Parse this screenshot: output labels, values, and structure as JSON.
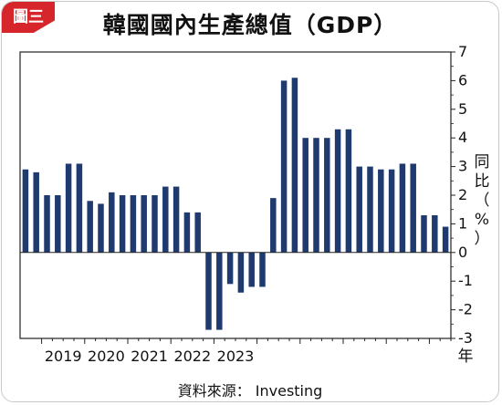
{
  "badge": "圖三",
  "title": "韓國國內生產總值（GDP）",
  "source": "資料來源： Investing",
  "chart_data": {
    "type": "bar",
    "title": "韓國國內生產總值（GDP）",
    "ylabel": "同比（%）",
    "xlabel": "年",
    "ylim": [
      -3,
      7
    ],
    "yticks": [
      -3,
      -2,
      -1,
      0,
      1,
      2,
      3,
      4,
      5,
      6,
      7
    ],
    "year_labels": [
      "2019",
      "2020",
      "2021",
      "2022",
      "2023"
    ],
    "values": [
      2.9,
      2.8,
      2.0,
      2.0,
      3.1,
      3.1,
      1.8,
      1.7,
      2.1,
      2.0,
      2.0,
      2.0,
      2.0,
      2.3,
      2.3,
      1.4,
      1.4,
      -2.7,
      -2.7,
      -1.1,
      -1.4,
      -1.2,
      -1.2,
      1.9,
      6.0,
      6.1,
      4.0,
      4.0,
      4.0,
      4.3,
      4.3,
      3.0,
      3.0,
      2.9,
      2.9,
      3.1,
      3.1,
      1.3,
      1.3,
      0.9
    ],
    "color": "#1f3a6e",
    "grid": false
  }
}
